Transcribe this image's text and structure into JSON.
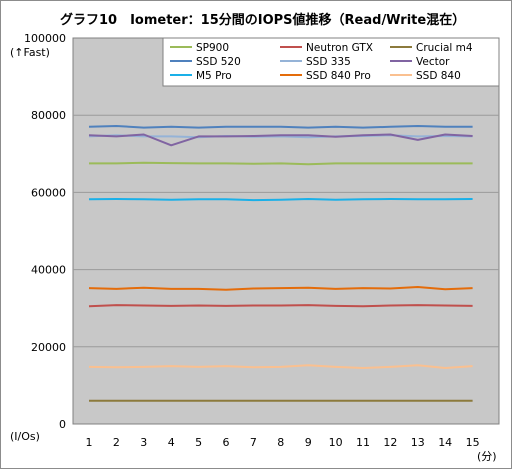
{
  "chart_data": {
    "type": "line",
    "title": "グラフ10　Iometer：15分間のIOPS値推移（Read/Write混在）",
    "ylabel_top": "(↑Fast)",
    "ylabel_unit": "(I/Os)",
    "xlabel_unit": "(分)",
    "ylim": [
      0,
      100000
    ],
    "yticks": [
      0,
      20000,
      40000,
      60000,
      80000,
      100000
    ],
    "ytick_labels": [
      "0",
      "20000",
      "40000",
      "60000",
      "80000",
      "100000"
    ],
    "x": [
      1,
      2,
      3,
      4,
      5,
      6,
      7,
      8,
      9,
      10,
      11,
      12,
      13,
      14,
      15
    ],
    "x_labels": [
      "1",
      "2",
      "3",
      "4",
      "5",
      "6",
      "7",
      "8",
      "9",
      "10",
      "11",
      "12",
      "13",
      "14",
      "15"
    ],
    "grid": true,
    "legend_position": "top-right",
    "series": [
      {
        "name": "SP900",
        "color": "#9bbb59",
        "values": [
          67500,
          67500,
          67700,
          67600,
          67500,
          67500,
          67400,
          67500,
          67300,
          67500,
          67500,
          67500,
          67500,
          67500,
          67500
        ]
      },
      {
        "name": "Neutron GTX",
        "color": "#c0504d",
        "values": [
          30500,
          30800,
          30700,
          30600,
          30700,
          30600,
          30700,
          30700,
          30800,
          30600,
          30500,
          30700,
          30800,
          30700,
          30600
        ]
      },
      {
        "name": "Crucial m4",
        "color": "#8c7a3c",
        "values": [
          6000,
          6000,
          6000,
          6000,
          6000,
          6000,
          6000,
          6000,
          6000,
          6000,
          6000,
          6000,
          6000,
          6000,
          6000
        ]
      },
      {
        "name": "SSD 520",
        "color": "#4f81bd",
        "values": [
          77000,
          77200,
          76800,
          77000,
          76800,
          77000,
          77000,
          77000,
          76800,
          77000,
          76800,
          77000,
          77200,
          77000,
          77000
        ]
      },
      {
        "name": "SSD 335",
        "color": "#95b3d7",
        "values": [
          74500,
          74800,
          74500,
          74500,
          74300,
          74600,
          74400,
          74500,
          74300,
          74500,
          74600,
          74800,
          74500,
          74600,
          74500
        ]
      },
      {
        "name": "Vector",
        "color": "#8064a2",
        "values": [
          74800,
          74500,
          75000,
          72200,
          74500,
          74500,
          74600,
          74800,
          74800,
          74400,
          74800,
          75000,
          73600,
          75000,
          74600
        ]
      },
      {
        "name": "M5 Pro",
        "color": "#1ab0e8",
        "values": [
          58200,
          58300,
          58200,
          58100,
          58200,
          58200,
          58000,
          58100,
          58300,
          58100,
          58200,
          58300,
          58200,
          58200,
          58300
        ]
      },
      {
        "name": "SSD 840 Pro",
        "color": "#e46c0a",
        "values": [
          35200,
          35000,
          35300,
          35000,
          35000,
          34800,
          35100,
          35200,
          35300,
          35000,
          35200,
          35100,
          35500,
          34900,
          35200
        ]
      },
      {
        "name": "SSD 840",
        "color": "#fac090",
        "values": [
          14800,
          14700,
          14800,
          15000,
          14800,
          15000,
          14700,
          14800,
          15200,
          14800,
          14500,
          14800,
          15200,
          14500,
          15000
        ]
      }
    ]
  }
}
